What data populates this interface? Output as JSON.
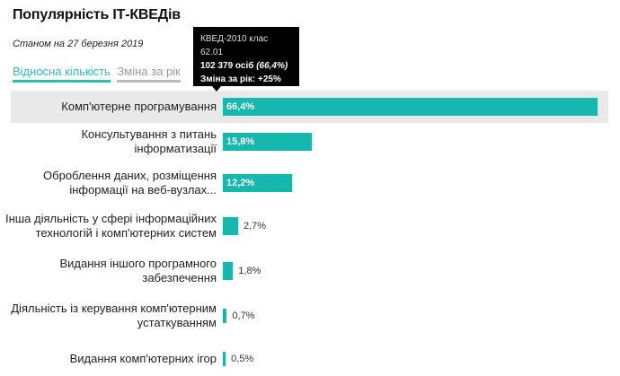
{
  "header": {
    "title": "Популярність ІТ-КВЕДів",
    "subtitle": "Станом на 27 березня 2019"
  },
  "tabs": [
    {
      "label": "Відносна кількість",
      "active": true
    },
    {
      "label": "Зміна за рік",
      "active": false
    }
  ],
  "tooltip": {
    "head": "КВЕД-2010 клас 62.01",
    "count": "102 379 осіб",
    "share": "(66,4%)",
    "change": "Зміна за рік: +25%"
  },
  "colors": {
    "bar": "#16b8ad",
    "accent": "#2bbfb3",
    "highlight": "#e9e9e9"
  },
  "chart_data": {
    "type": "bar",
    "orientation": "horizontal",
    "categories": [
      "Комп'ютерне програмування",
      "Консультування з питань інформатизації",
      "Оброблення даних, розміщення інформації на веб-вузлах...",
      "Інша діяльність у сфері інформаційних технологій і комп'ютерних систем",
      "Видання іншого програмного забезпечення",
      "Діяльність із керування комп'ютерним устаткуванням",
      "Видання комп'ютерних ігор"
    ],
    "category_lines": [
      [
        "Комп'ютерне програмування"
      ],
      [
        "Консультування з питань",
        "інформатизації"
      ],
      [
        "Оброблення даних, розміщення",
        "інформації на веб-вузлах..."
      ],
      [
        "Інша діяльність у сфері інформаційних",
        "технологій і комп'ютерних систем"
      ],
      [
        "Видання іншого програмного",
        "забезпечення"
      ],
      [
        "Діяльність із керування комп'ютерним",
        "устаткуванням"
      ],
      [
        "Видання комп'ютерних ігор"
      ]
    ],
    "values": [
      66.4,
      15.8,
      12.2,
      2.7,
      1.8,
      0.7,
      0.5
    ],
    "value_labels": [
      "66,4%",
      "15,8%",
      "12,2%",
      "2,7%",
      "1,8%",
      "0,7%",
      "0,5%"
    ],
    "unit": "%",
    "xlim": [
      0,
      66.4
    ],
    "highlighted_index": 0
  }
}
